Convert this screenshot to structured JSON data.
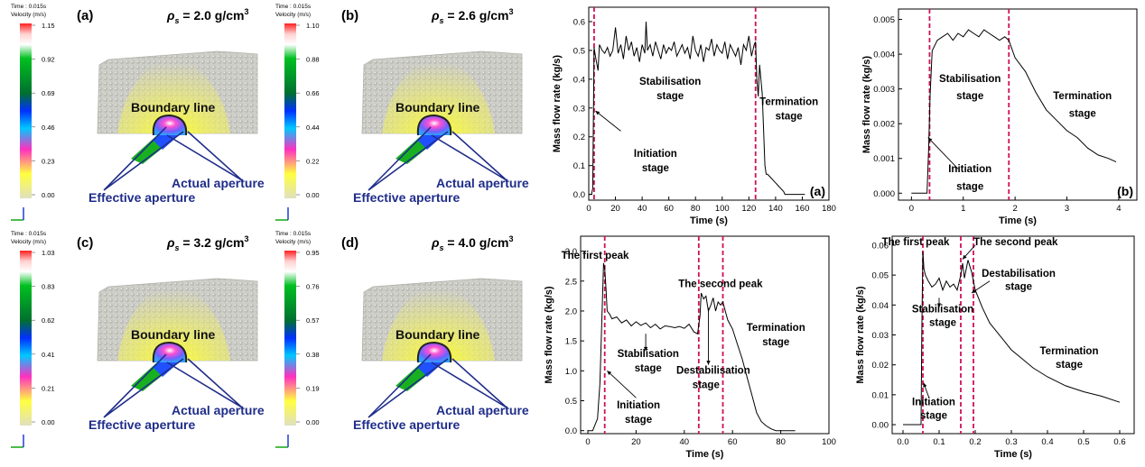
{
  "colors": {
    "accent_red": "#d0105a",
    "aperture_blue": "#1f2d8a",
    "axis": "#000000",
    "particle_bed": "#c7c7c2"
  },
  "simulations": [
    {
      "label": "(a)",
      "rho_label": "ρ",
      "rho_sub": "s",
      "rho_value": " = 2.0 g/cm",
      "rho_sup": "3",
      "legend_header_time": "Time : 0.015s",
      "legend_header_velocity": "Velocity (m/s)",
      "legend_ticks": [
        "1.15",
        "0.92",
        "0.69",
        "0.46",
        "0.23",
        "0.00"
      ],
      "boundary_label": "Boundary line",
      "actual_label": "Actual aperture",
      "effective_label": "Effective aperture"
    },
    {
      "label": "(b)",
      "rho_label": "ρ",
      "rho_sub": "s",
      "rho_value": " = 2.6 g/cm",
      "rho_sup": "3",
      "legend_header_time": "Time : 0.015s",
      "legend_header_velocity": "Velocity (m/s)",
      "legend_ticks": [
        "1.10",
        "0.88",
        "0.66",
        "0.44",
        "0.22",
        "0.00"
      ],
      "boundary_label": "Boundary line",
      "actual_label": "Actual aperture",
      "effective_label": "Effective aperture"
    },
    {
      "label": "(c)",
      "rho_label": "ρ",
      "rho_sub": "s",
      "rho_value": " = 3.2 g/cm",
      "rho_sup": "3",
      "legend_header_time": "Time : 0.015s",
      "legend_header_velocity": "Velocity (m/s)",
      "legend_ticks": [
        "1.03",
        "0.83",
        "0.62",
        "0.41",
        "0.21",
        "0.00"
      ],
      "boundary_label": "Boundary line",
      "actual_label": "Actual aperture",
      "effective_label": "Effective aperture"
    },
    {
      "label": "(d)",
      "rho_label": "ρ",
      "rho_sub": "s",
      "rho_value": " = 4.0 g/cm",
      "rho_sup": "3",
      "legend_header_time": "Time : 0.015s",
      "legend_header_velocity": "Velocity (m/s)",
      "legend_ticks": [
        "0.95",
        "0.76",
        "0.57",
        "0.38",
        "0.19",
        "0.00"
      ],
      "boundary_label": "Boundary line",
      "actual_label": "Actual aperture",
      "effective_label": "Effective aperture"
    }
  ],
  "chart_data": [
    {
      "type": "line",
      "panel_label": "(a)",
      "xlabel": "Time (s)",
      "ylabel": "Mass flow rate (kg/s)",
      "xlim": [
        0,
        180
      ],
      "ylim": [
        -0.02,
        0.65
      ],
      "xticks": [
        0,
        20,
        40,
        60,
        80,
        100,
        120,
        140,
        160,
        180
      ],
      "xtick_labels": [
        "0",
        "20",
        "40",
        "60",
        "80",
        "100",
        "120",
        "140",
        "160",
        "180"
      ],
      "yticks": [
        0.0,
        0.1,
        0.2,
        0.3,
        0.4,
        0.5,
        0.6
      ],
      "ytick_labels": [
        "0.0",
        "0.1",
        "0.2",
        "0.3",
        "0.4",
        "0.5",
        "0.6"
      ],
      "vlines": [
        4,
        125
      ],
      "annotations": [
        {
          "text": "Stabilisation",
          "x": 61,
          "y": 0.38
        },
        {
          "text": "stage",
          "x": 61,
          "y": 0.33
        },
        {
          "text": "Termination",
          "x": 150,
          "y": 0.31
        },
        {
          "text": "stage",
          "x": 150,
          "y": 0.26
        },
        {
          "text": "Initiation",
          "x": 50,
          "y": 0.13
        },
        {
          "text": "stage",
          "x": 50,
          "y": 0.08
        }
      ],
      "arrows": [
        {
          "from": [
            24,
            0.22
          ],
          "to": [
            5,
            0.29
          ]
        }
      ],
      "series": [
        {
          "name": "Mass flow rate",
          "x": [
            0,
            2,
            3,
            4,
            5,
            7,
            8,
            10,
            12,
            14,
            16,
            18,
            20,
            22,
            24,
            26,
            28,
            30,
            32,
            34,
            36,
            38,
            40,
            42,
            43,
            44,
            46,
            48,
            50,
            52,
            54,
            56,
            58,
            60,
            62,
            64,
            66,
            68,
            70,
            72,
            74,
            76,
            78,
            80,
            82,
            84,
            86,
            88,
            90,
            92,
            94,
            96,
            98,
            100,
            102,
            104,
            106,
            108,
            110,
            112,
            114,
            116,
            118,
            120,
            122,
            124,
            125,
            126,
            127,
            128,
            130,
            132,
            133,
            134,
            136,
            138,
            140,
            142,
            144,
            146,
            147,
            150,
            155,
            160,
            162
          ],
          "y": [
            0,
            0,
            0.02,
            0.51,
            0.48,
            0.43,
            0.52,
            0.5,
            0.49,
            0.51,
            0.48,
            0.5,
            0.58,
            0.49,
            0.52,
            0.47,
            0.55,
            0.5,
            0.53,
            0.48,
            0.51,
            0.46,
            0.52,
            0.49,
            0.6,
            0.5,
            0.52,
            0.48,
            0.53,
            0.5,
            0.47,
            0.52,
            0.49,
            0.51,
            0.5,
            0.53,
            0.48,
            0.5,
            0.52,
            0.49,
            0.51,
            0.47,
            0.55,
            0.5,
            0.48,
            0.52,
            0.46,
            0.51,
            0.5,
            0.54,
            0.48,
            0.52,
            0.5,
            0.49,
            0.53,
            0.47,
            0.52,
            0.5,
            0.48,
            0.51,
            0.45,
            0.52,
            0.5,
            0.55,
            0.48,
            0.52,
            0.53,
            0.4,
            0.34,
            0.45,
            0.35,
            0.1,
            0.07,
            0.07,
            0.06,
            0.05,
            0.04,
            0.03,
            0.02,
            0.01,
            0.0,
            0.0,
            0.0,
            0.0,
            0.0
          ]
        }
      ]
    },
    {
      "type": "line",
      "panel_label": "(b)",
      "xlabel": "Time (s)",
      "ylabel": "Mass flow rate (kg/s)",
      "xlim": [
        -0.25,
        4.35
      ],
      "ylim": [
        -0.0002,
        0.0053
      ],
      "xticks": [
        0,
        1,
        2,
        3,
        4
      ],
      "xtick_labels": [
        "0",
        "1",
        "2",
        "3",
        "4"
      ],
      "yticks": [
        0.0,
        0.001,
        0.002,
        0.003,
        0.004,
        0.005
      ],
      "ytick_labels": [
        "0.000",
        "0.001",
        "0.002",
        "0.003",
        "0.004",
        "0.005"
      ],
      "vlines": [
        0.35,
        1.88
      ],
      "annotations": [
        {
          "text": "Stabilisation",
          "x": 1.13,
          "y": 0.0032
        },
        {
          "text": "stage",
          "x": 1.13,
          "y": 0.0027
        },
        {
          "text": "Termination",
          "x": 3.3,
          "y": 0.0027
        },
        {
          "text": "stage",
          "x": 3.3,
          "y": 0.0022
        },
        {
          "text": "Initiation",
          "x": 1.13,
          "y": 0.0006
        },
        {
          "text": "stage",
          "x": 1.13,
          "y": 0.0001
        }
      ],
      "arrows": [
        {
          "from": [
            0.9,
            0.0007
          ],
          "to": [
            0.32,
            0.0016
          ]
        }
      ],
      "series": [
        {
          "name": "Mass flow rate",
          "x": [
            0.0,
            0.2,
            0.3,
            0.33,
            0.36,
            0.4,
            0.5,
            0.6,
            0.7,
            0.8,
            0.9,
            1.0,
            1.1,
            1.2,
            1.3,
            1.4,
            1.5,
            1.6,
            1.7,
            1.8,
            1.88,
            2.0,
            2.2,
            2.4,
            2.6,
            2.8,
            3.0,
            3.2,
            3.4,
            3.6,
            3.8,
            3.95
          ],
          "y": [
            0.0,
            0.0,
            0.0,
            0.0012,
            0.0028,
            0.0041,
            0.0044,
            0.0045,
            0.0046,
            0.0044,
            0.0046,
            0.0045,
            0.0047,
            0.0046,
            0.0045,
            0.0047,
            0.0046,
            0.0045,
            0.0044,
            0.0045,
            0.0044,
            0.0039,
            0.0035,
            0.0029,
            0.0024,
            0.0021,
            0.0018,
            0.0016,
            0.0013,
            0.0011,
            0.001,
            0.0009
          ]
        }
      ]
    },
    {
      "type": "line",
      "panel_label": "",
      "xlabel": "Time (s)",
      "ylabel": "Mass flow rate (kg/s)",
      "xlim": [
        -3,
        100
      ],
      "ylim": [
        -0.05,
        3.25
      ],
      "xticks": [
        0,
        20,
        40,
        60,
        80,
        100
      ],
      "xtick_labels": [
        "0",
        "20",
        "40",
        "60",
        "80",
        "100"
      ],
      "yticks": [
        0.0,
        0.5,
        1.0,
        1.5,
        2.0,
        2.5,
        3.0
      ],
      "ytick_labels": [
        "0.0",
        "0.5",
        "1.0",
        "1.5",
        "2.0",
        "2.5",
        "3.0"
      ],
      "vlines": [
        7,
        46,
        56
      ],
      "annotations": [
        {
          "text": "The first peak",
          "x": 3,
          "y": 2.87
        },
        {
          "text": "The second peak",
          "x": 55,
          "y": 2.4
        },
        {
          "text": "Termination",
          "x": 78,
          "y": 1.67
        },
        {
          "text": "stage",
          "x": 78,
          "y": 1.43
        },
        {
          "text": "Stabilisation",
          "x": 25,
          "y": 1.23
        },
        {
          "text": "stage",
          "x": 25,
          "y": 0.99
        },
        {
          "text": "Destabilisation",
          "x": 52,
          "y": 0.95
        },
        {
          "text": "stage",
          "x": 49,
          "y": 0.71
        },
        {
          "text": "Initiation",
          "x": 21,
          "y": 0.37
        },
        {
          "text": "stage",
          "x": 21,
          "y": 0.13
        }
      ],
      "arrows": [
        {
          "from": [
            20,
            0.55
          ],
          "to": [
            8,
            1.0
          ]
        },
        {
          "from": [
            24,
            1.62
          ],
          "to": [
            24,
            1.33
          ]
        },
        {
          "from": [
            50,
            2.05
          ],
          "to": [
            50,
            1.1
          ]
        }
      ],
      "series": [
        {
          "name": "Mass flow rate",
          "x": [
            0,
            2,
            4,
            5,
            6,
            6.5,
            7,
            7.5,
            8,
            9,
            10,
            12,
            14,
            16,
            18,
            20,
            22,
            24,
            26,
            28,
            30,
            32,
            34,
            36,
            38,
            40,
            42,
            44,
            45.5,
            46.5,
            47,
            48,
            49,
            50,
            51,
            52,
            53,
            54,
            55,
            56,
            57,
            58,
            60,
            62,
            64,
            66,
            68,
            70,
            72,
            74,
            76,
            78,
            80,
            82,
            84,
            86
          ],
          "y": [
            0,
            0,
            0.2,
            0.8,
            2.1,
            2.8,
            2.7,
            2.4,
            2.0,
            1.95,
            1.87,
            1.9,
            1.8,
            1.85,
            1.75,
            1.82,
            1.76,
            1.8,
            1.72,
            1.78,
            1.7,
            1.75,
            1.74,
            1.72,
            1.74,
            1.71,
            1.78,
            1.65,
            1.62,
            1.92,
            2.3,
            2.2,
            2.25,
            2.0,
            2.1,
            2.22,
            2.0,
            2.15,
            2.1,
            2.15,
            2.0,
            1.85,
            1.7,
            1.45,
            1.2,
            0.9,
            0.6,
            0.3,
            0.15,
            0.08,
            0.03,
            0.0,
            0.0,
            0.0,
            0.0,
            0.0
          ]
        }
      ]
    },
    {
      "type": "line",
      "panel_label": "",
      "xlabel": "Time (s)",
      "ylabel": "Mass flow rate (kg/s)",
      "xlim": [
        -0.03,
        0.64
      ],
      "ylim": [
        -0.003,
        0.063
      ],
      "xticks": [
        0.0,
        0.1,
        0.2,
        0.3,
        0.4,
        0.5,
        0.6
      ],
      "xtick_labels": [
        "0.0",
        "0.1",
        "0.2",
        "0.3",
        "0.4",
        "0.5",
        "0.6"
      ],
      "yticks": [
        0.0,
        0.01,
        0.02,
        0.03,
        0.04,
        0.05,
        0.06
      ],
      "ytick_labels": [
        "0.00",
        "0.01",
        "0.02",
        "0.03",
        "0.04",
        "0.05",
        "0.06"
      ],
      "vlines": [
        0.055,
        0.16,
        0.195
      ],
      "annotations": [
        {
          "text": "The first peak",
          "x": 0.035,
          "y": 0.06
        },
        {
          "text": "The second peak",
          "x": 0.312,
          "y": 0.06
        },
        {
          "text": "Destabilisation",
          "x": 0.32,
          "y": 0.0495
        },
        {
          "text": "stage",
          "x": 0.32,
          "y": 0.045
        },
        {
          "text": "Stabilisation",
          "x": 0.11,
          "y": 0.0375
        },
        {
          "text": "stage",
          "x": 0.11,
          "y": 0.033
        },
        {
          "text": "Termination",
          "x": 0.46,
          "y": 0.0235
        },
        {
          "text": "stage",
          "x": 0.46,
          "y": 0.019
        },
        {
          "text": "Initiation",
          "x": 0.085,
          "y": 0.0065
        },
        {
          "text": "stage",
          "x": 0.085,
          "y": 0.002
        }
      ],
      "arrows": [
        {
          "from": [
            0.2,
            0.06
          ],
          "to": [
            0.165,
            0.0553
          ]
        },
        {
          "from": [
            0.24,
            0.048
          ],
          "to": [
            0.19,
            0.044
          ]
        },
        {
          "from": [
            0.1,
            0.0424
          ],
          "to": [
            0.1,
            0.0392
          ]
        },
        {
          "from": [
            0.072,
            0.009
          ],
          "to": [
            0.057,
            0.014
          ]
        }
      ],
      "series": [
        {
          "name": "Mass flow rate",
          "x": [
            0.0,
            0.04,
            0.05,
            0.052,
            0.055,
            0.058,
            0.062,
            0.07,
            0.08,
            0.09,
            0.1,
            0.11,
            0.12,
            0.13,
            0.14,
            0.15,
            0.16,
            0.165,
            0.17,
            0.18,
            0.19,
            0.2,
            0.22,
            0.24,
            0.26,
            0.28,
            0.3,
            0.33,
            0.36,
            0.4,
            0.45,
            0.5,
            0.55,
            0.6
          ],
          "y": [
            0.0,
            0.0,
            0.0,
            0.03,
            0.058,
            0.052,
            0.05,
            0.048,
            0.046,
            0.047,
            0.049,
            0.045,
            0.048,
            0.046,
            0.047,
            0.045,
            0.05,
            0.054,
            0.049,
            0.055,
            0.051,
            0.045,
            0.039,
            0.034,
            0.031,
            0.028,
            0.025,
            0.022,
            0.019,
            0.016,
            0.013,
            0.011,
            0.0095,
            0.0075
          ]
        }
      ]
    }
  ]
}
